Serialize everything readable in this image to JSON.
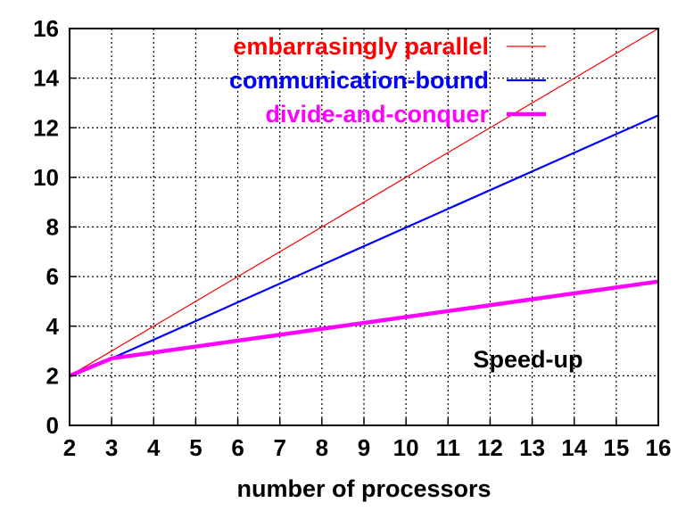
{
  "chart_data": {
    "type": "line",
    "title": "",
    "xlabel": "number of processors",
    "ylabel": "",
    "annotation": "Speed-up",
    "xlim": [
      2,
      16
    ],
    "ylim": [
      0,
      16
    ],
    "x_ticks": [
      2,
      3,
      4,
      5,
      6,
      7,
      8,
      9,
      10,
      11,
      12,
      13,
      14,
      15,
      16
    ],
    "y_ticks": [
      0,
      2,
      4,
      6,
      8,
      10,
      12,
      14,
      16
    ],
    "grid": true,
    "legend_position": "top-right",
    "series": [
      {
        "name": "embarrasingly parallel",
        "color": "#ff0000",
        "line_weight": "thin",
        "x": [
          2,
          16
        ],
        "y": [
          2,
          16
        ]
      },
      {
        "name": "communication-bound",
        "color": "#0000ff",
        "line_weight": "medium",
        "x": [
          2,
          3,
          16
        ],
        "y": [
          2,
          2.7,
          12.5
        ]
      },
      {
        "name": "divide-and-conquer",
        "color": "#ff00ff",
        "line_weight": "thick",
        "x": [
          2,
          3,
          16
        ],
        "y": [
          2,
          2.7,
          5.8
        ]
      }
    ]
  }
}
